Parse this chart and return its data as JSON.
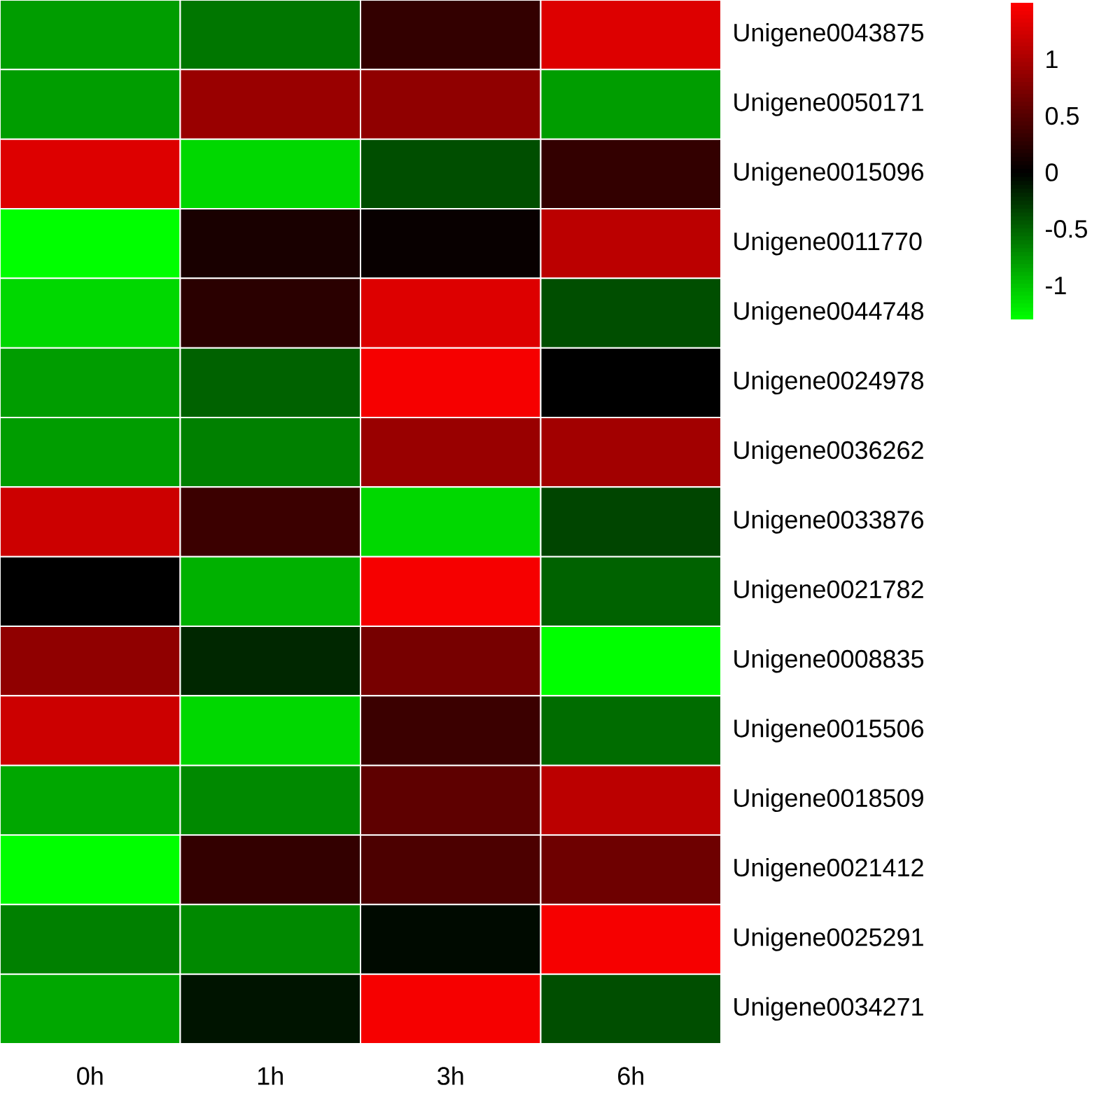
{
  "chart_data": {
    "type": "heatmap",
    "categories": [
      "0h",
      "1h",
      "3h",
      "6h"
    ],
    "y_categories": [
      "Unigene0043875",
      "Unigene0050171",
      "Unigene0015096",
      "Unigene0011770",
      "Unigene0044748",
      "Unigene0024978",
      "Unigene0036262",
      "Unigene0033876",
      "Unigene0021782",
      "Unigene0008835",
      "Unigene0015506",
      "Unigene0018509",
      "Unigene0021412",
      "Unigene0025291",
      "Unigene0034271"
    ],
    "cells": [
      [
        -0.8,
        -0.6,
        0.3,
        1.3
      ],
      [
        -0.8,
        0.9,
        0.85,
        -0.8
      ],
      [
        1.3,
        -1.1,
        -0.4,
        0.3
      ],
      [
        -1.3,
        0.15,
        0.05,
        1.1
      ],
      [
        -1.1,
        0.25,
        1.3,
        -0.4
      ],
      [
        -0.8,
        -0.5,
        1.45,
        0.0
      ],
      [
        -0.8,
        -0.65,
        0.9,
        0.95
      ],
      [
        1.2,
        0.35,
        -1.1,
        -0.35
      ],
      [
        0.0,
        -0.9,
        1.45,
        -0.5
      ],
      [
        0.85,
        -0.2,
        0.7,
        -1.3
      ],
      [
        1.2,
        -1.1,
        0.35,
        -0.55
      ],
      [
        -0.85,
        -0.7,
        0.55,
        1.1
      ],
      [
        -1.3,
        0.3,
        0.45,
        0.65
      ],
      [
        -0.65,
        -0.7,
        -0.05,
        1.45
      ],
      [
        -0.85,
        -0.1,
        1.45,
        -0.4
      ]
    ],
    "clim": [
      -1.3,
      1.5
    ],
    "cticks": [
      -1,
      -0.5,
      0,
      0.5,
      1
    ]
  }
}
